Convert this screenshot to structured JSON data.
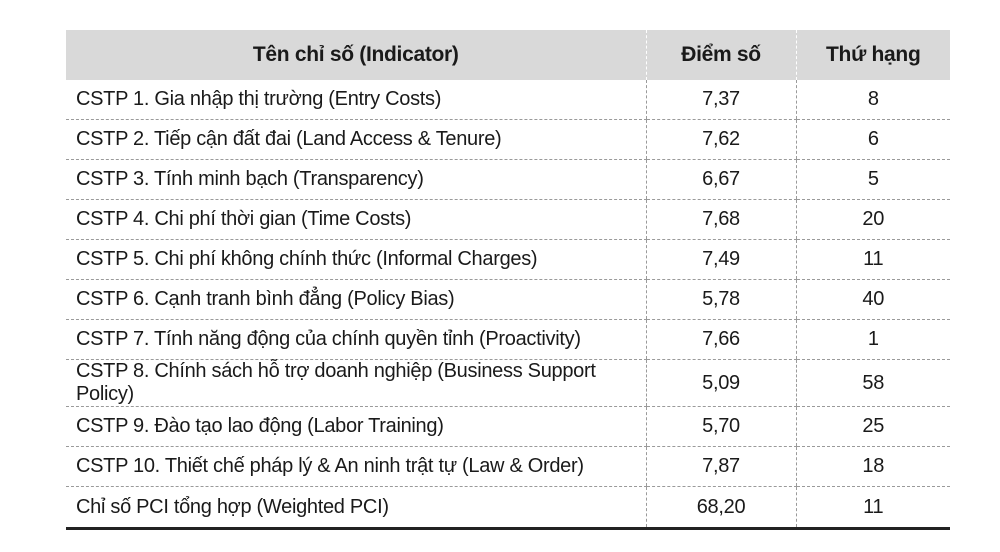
{
  "table": {
    "headers": {
      "indicator": "Tên chỉ số (Indicator)",
      "score": "Điểm số",
      "rank": "Thứ hạng"
    },
    "rows": [
      {
        "indicator": "CSTP 1. Gia nhập thị trường (Entry Costs)",
        "score": "7,37",
        "rank": "8"
      },
      {
        "indicator": "CSTP 2. Tiếp cận đất đai (Land Access & Tenure)",
        "score": "7,62",
        "rank": "6"
      },
      {
        "indicator": "CSTP 3. Tính minh bạch (Transparency)",
        "score": "6,67",
        "rank": "5"
      },
      {
        "indicator": "CSTP 4. Chi phí thời gian (Time Costs)",
        "score": "7,68",
        "rank": "20"
      },
      {
        "indicator": "CSTP 5. Chi phí không chính thức (Informal Charges)",
        "score": "7,49",
        "rank": "11"
      },
      {
        "indicator": "CSTP 6. Cạnh tranh bình đẳng (Policy Bias)",
        "score": "5,78",
        "rank": "40"
      },
      {
        "indicator": "CSTP 7. Tính năng động của chính quyền tỉnh (Proactivity)",
        "score": "7,66",
        "rank": "1"
      },
      {
        "indicator": "CSTP 8. Chính sách hỗ trợ doanh nghiệp (Business Support Policy)",
        "score": "5,09",
        "rank": "58"
      },
      {
        "indicator": "CSTP 9. Đào tạo lao động (Labor Training)",
        "score": "5,70",
        "rank": "25"
      },
      {
        "indicator": "CSTP 10. Thiết chế pháp lý & An ninh trật tự (Law & Order)",
        "score": "7,87",
        "rank": "18"
      }
    ],
    "total": {
      "indicator": "Chỉ số PCI tổng hợp (Weighted PCI)",
      "score": "68,20",
      "rank": "11"
    }
  }
}
